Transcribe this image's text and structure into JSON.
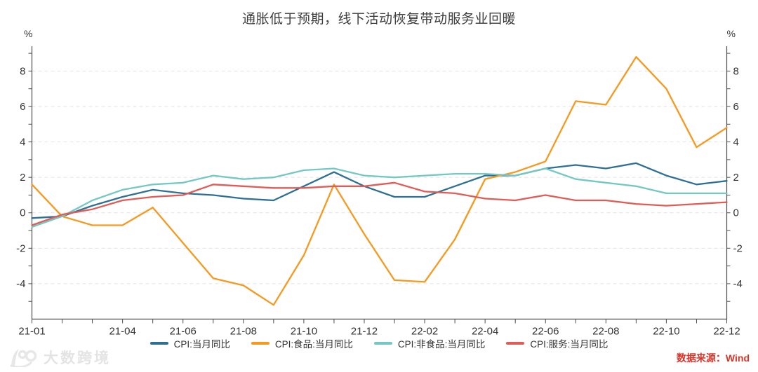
{
  "title": "通胀低于预期，线下活动恢复带动服务业回暖",
  "axis_unit": "%",
  "source_text": "数据来源：Wind",
  "watermark_text": "大数跨境",
  "colors": {
    "cpi_line": "#2e7093",
    "food_line": "#f5991f",
    "nonfood_line": "#74c8c4",
    "services_line": "#e05c57",
    "source_text": "#d9352a",
    "axis_line": "#4d4d4d",
    "tick_label": "#333333",
    "gridline": "#e2e2e2"
  },
  "chart_data": {
    "type": "line",
    "title": "通胀低于预期，线下活动恢复带动服务业回暖",
    "x": [
      "21-01",
      "21-02",
      "21-03",
      "21-04",
      "21-05",
      "21-06",
      "21-07",
      "21-08",
      "21-09",
      "21-10",
      "21-11",
      "21-12",
      "22-01",
      "22-02",
      "22-03",
      "22-04",
      "22-05",
      "22-06",
      "22-07",
      "22-08",
      "22-09",
      "22-10",
      "22-11",
      "22-12"
    ],
    "x_label_indices": [
      0,
      3,
      5,
      7,
      9,
      11,
      13,
      15,
      17,
      19,
      21,
      23
    ],
    "series": [
      {
        "name": "CPI:当月同比",
        "color": "#2e7093",
        "values": [
          -0.3,
          -0.2,
          0.4,
          0.9,
          1.3,
          1.1,
          1.0,
          0.8,
          0.7,
          1.5,
          2.3,
          1.5,
          0.9,
          0.9,
          1.5,
          2.1,
          2.1,
          2.5,
          2.7,
          2.5,
          2.8,
          2.1,
          1.6,
          1.8
        ]
      },
      {
        "name": "CPI:食品:当月同比",
        "color": "#f5991f",
        "values": [
          1.6,
          -0.2,
          -0.7,
          -0.7,
          0.3,
          -1.7,
          -3.7,
          -4.1,
          -5.2,
          -2.4,
          1.6,
          -1.2,
          -3.8,
          -3.9,
          -1.5,
          1.9,
          2.3,
          2.9,
          6.3,
          6.1,
          8.8,
          7.0,
          3.7,
          4.8
        ]
      },
      {
        "name": "CPI:非食品:当月同比",
        "color": "#74c8c4",
        "values": [
          -0.8,
          -0.2,
          0.7,
          1.3,
          1.6,
          1.7,
          2.1,
          1.9,
          2.0,
          2.4,
          2.5,
          2.1,
          2.0,
          2.1,
          2.2,
          2.2,
          2.1,
          2.5,
          1.9,
          1.7,
          1.5,
          1.1,
          1.1,
          1.1
        ]
      },
      {
        "name": "CPI:服务:当月同比",
        "color": "#e05c57",
        "values": [
          -0.7,
          -0.1,
          0.2,
          0.7,
          0.9,
          1.0,
          1.6,
          1.5,
          1.4,
          1.4,
          1.5,
          1.5,
          1.7,
          1.2,
          1.1,
          0.8,
          0.7,
          1.0,
          0.7,
          0.7,
          0.5,
          0.4,
          0.5,
          0.6
        ]
      }
    ],
    "ylabel": "%",
    "ylim": [
      -6,
      9.4
    ],
    "y_labeled_ticks": [
      -4,
      -2,
      0,
      2,
      4,
      6,
      8
    ],
    "y_minor_tick_step": 1,
    "grid": "horizontal-dashed",
    "legend_position": "bottom-center",
    "dual_y_axis": true
  }
}
